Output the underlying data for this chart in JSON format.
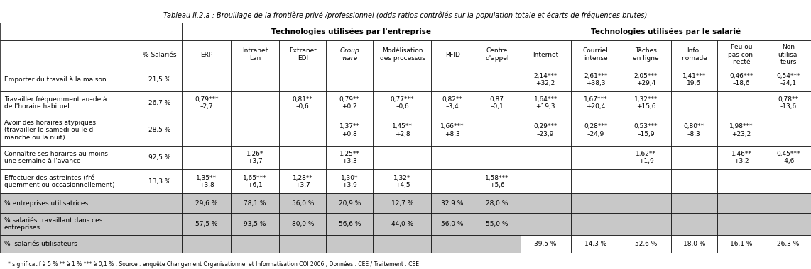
{
  "title": "Tableau II.2.a : Brouillage de la frontière privé /professionnel (odds ratios contrôlés sur la population totale et écarts de fréquences brutes)",
  "footnote": "* significatif à 5 % ** à 1 % *** à 0,1 % ; Source : enquête Changement Organisationnel et Informatisation COI 2006 ; Données : CEE / Traitement : CEE",
  "header_enterprise": "Technologies utilisées par l'entreprise",
  "header_salarie": "Technologies utilisées par le salarié",
  "col_salaries": "% Salariés",
  "tech_enterprise_cols": [
    "ERP",
    "Intranet\nLan",
    "Extranet\nEDI",
    "Group\nware",
    "Modélisation\ndes processus",
    "RFID",
    "Centre\nd'appel"
  ],
  "tech_enterprise_italic": [
    false,
    false,
    false,
    true,
    false,
    false,
    false
  ],
  "tech_salarie_cols": [
    "Internet",
    "Courriel\nintense",
    "Tâches\nen ligne",
    "Info.\nnomade",
    "Peu ou\npas con-\nnecté",
    "Non\nutilisa-\nteurs"
  ],
  "row_labels": [
    "Emporter du travail à la maison",
    "Travailler fréquemment au–delà\nde l'horaire habituel",
    "Avoir des horaires atypiques\n(travailler le samedi ou le di-\nmanche ou la nuit)",
    "Connaître ses horaires au moins\nune semaine à l'avance",
    "Effectuer des astreintes (fré-\nquemment ou occasionnellement)",
    "% entreprises utilisatrices",
    "% salariés travaillant dans ces\nentreprises",
    "%  salariés utilisateurs"
  ],
  "pct_salaries": [
    "21,5 %",
    "26,7 %",
    "28,5 %",
    "92,5 %",
    "13,3 %",
    "",
    "",
    ""
  ],
  "ent_data": [
    [
      "",
      "",
      "",
      "",
      "",
      "",
      ""
    ],
    [
      "0,79***\n–2,7",
      "",
      "0,81**\n–0,6",
      "0,79**\n+0,2",
      "0,77***\n–0,6",
      "0,82**\n–3,4",
      "0,87\n–0,1"
    ],
    [
      "",
      "",
      "",
      "1,37**\n+0,8",
      "1,45**\n+2,8",
      "1,66***\n+8,3",
      ""
    ],
    [
      "",
      "1,26*\n+3,7",
      "",
      "1,25**\n+3,3",
      "",
      "",
      ""
    ],
    [
      "1,35**\n+3,8",
      "1,65***\n+6,1",
      "1,28**\n+3,7",
      "1,30*\n+3,9",
      "1,32*\n+4,5",
      "",
      "1,58***\n+5,6"
    ],
    [
      "29,6 %",
      "78,1 %",
      "56,0 %",
      "20,9 %",
      "12,7 %",
      "32,9 %",
      "28,0 %"
    ],
    [
      "57,5 %",
      "93,5 %",
      "80,0 %",
      "56,6 %",
      "44,0 %",
      "56,0 %",
      "55,0 %"
    ],
    [
      "",
      "",
      "",
      "",
      "",
      "",
      ""
    ]
  ],
  "sal_data": [
    [
      "2,14***\n+32,2",
      "2,61***\n+38,3",
      "2,05***\n+29,4",
      "1,41***\n19,6",
      "0,46***\n–18,6",
      "0,54***\n-24,1"
    ],
    [
      "1,64***\n+19,3",
      "1,67***\n+20,4",
      "1,32***\n+15,6",
      "",
      "",
      "0,78**\n-13,6"
    ],
    [
      "0,29***\n–23,9",
      "0,28***\n–24,9",
      "0,53***\n–15,9",
      "0,80**\n–8,3",
      "1,98***\n+23,2",
      ""
    ],
    [
      "",
      "",
      "1,62**\n+1,9",
      "",
      "1,46**\n+3,2",
      "0,45***\n-4,6"
    ],
    [
      "",
      "",
      "",
      "",
      "",
      ""
    ],
    [
      "",
      "",
      "",
      "",
      "",
      ""
    ],
    [
      "",
      "",
      "",
      "",
      "",
      ""
    ],
    [
      "39,5 %",
      "14,3 %",
      "52,6 %",
      "18,0 %",
      "16,1 %",
      "26,3 %"
    ]
  ],
  "gray_color": "#c8c8c8",
  "font_size_title": 7.0,
  "font_size_header": 7.5,
  "font_size_cell": 6.5,
  "font_size_footnote": 5.5
}
